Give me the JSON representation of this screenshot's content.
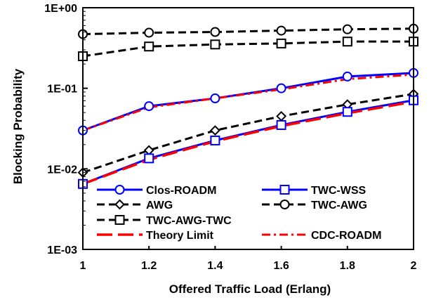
{
  "chart_data": {
    "type": "line",
    "xlabel": "Offered Traffic Load (Erlang)",
    "ylabel": "Blocking Probability",
    "y_scale": "log",
    "xlim": [
      1,
      2
    ],
    "ylim": [
      0.001,
      1
    ],
    "x_ticks": [
      1,
      1.2,
      1.4,
      1.6,
      1.8,
      2
    ],
    "x_tick_labels": [
      "1",
      "1.2",
      "1.4",
      "1.6",
      "1.8",
      "2"
    ],
    "y_ticks": [
      1,
      0.1,
      0.01,
      0.001
    ],
    "y_tick_labels": [
      "1E+00",
      "1E-01",
      "1E-02",
      "1E-03"
    ],
    "grid": false,
    "legend_position": "bottom-right",
    "x": [
      1,
      1.2,
      1.4,
      1.6,
      1.8,
      2
    ],
    "series": [
      {
        "name": "Clos-ROADM",
        "values": [
          0.03,
          0.06,
          0.075,
          0.1,
          0.14,
          0.155
        ],
        "color": "#0000ff",
        "dash": "solid",
        "marker": "circle"
      },
      {
        "name": "TWC-WSS",
        "values": [
          0.0065,
          0.0135,
          0.0225,
          0.035,
          0.051,
          0.071
        ],
        "color": "#0000ff",
        "dash": "solid",
        "marker": "square"
      },
      {
        "name": "AWG",
        "values": [
          0.009,
          0.017,
          0.03,
          0.045,
          0.063,
          0.085
        ],
        "color": "#000000",
        "dash": "dashed",
        "marker": "diamond"
      },
      {
        "name": "TWC-AWG",
        "values": [
          0.47,
          0.49,
          0.5,
          0.52,
          0.54,
          0.55
        ],
        "color": "#000000",
        "dash": "dashed",
        "marker": "circle"
      },
      {
        "name": "TWC-AWG-TWC",
        "values": [
          0.25,
          0.33,
          0.35,
          0.36,
          0.38,
          0.38
        ],
        "color": "#000000",
        "dash": "dashed",
        "marker": "square"
      },
      {
        "name": "Theory Limit",
        "values": [
          0.0065,
          0.013,
          0.022,
          0.034,
          0.049,
          0.068
        ],
        "color": "#ff0000",
        "dash": "longdash",
        "marker": "none"
      },
      {
        "name": "CDC-ROADM",
        "values": [
          0.03,
          0.058,
          0.075,
          0.097,
          0.13,
          0.148
        ],
        "color": "#ff0000",
        "dash": "dashdot",
        "marker": "none"
      }
    ]
  }
}
